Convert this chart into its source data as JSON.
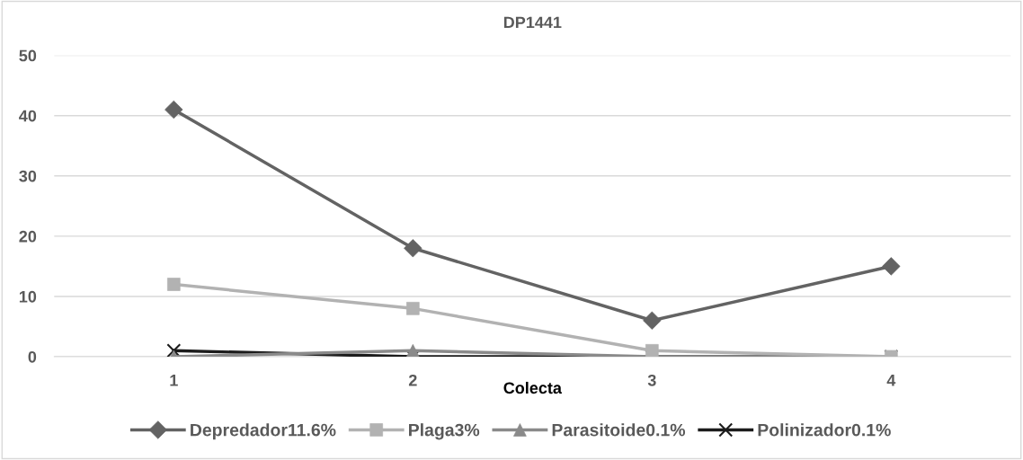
{
  "chart_data": {
    "type": "line",
    "title": "DP1441",
    "xlabel": "Colecta",
    "categories": [
      "1",
      "2",
      "3",
      "4"
    ],
    "series": [
      {
        "name": "Depredador11.6%",
        "color": "#636363",
        "marker": "diamond",
        "values": [
          41,
          18,
          6,
          15
        ]
      },
      {
        "name": "Plaga3%",
        "color": "#b2b2b2",
        "marker": "square",
        "values": [
          12,
          8,
          1,
          0
        ]
      },
      {
        "name": "Parasitoide0.1%",
        "color": "#8a8a8a",
        "marker": "triangle",
        "values": [
          0,
          1,
          0,
          0
        ]
      },
      {
        "name": "Polinizador0.1%",
        "color": "#1c1c1c",
        "marker": "cross",
        "values": [
          1,
          0,
          0,
          0
        ]
      }
    ],
    "ylim": [
      0,
      50
    ],
    "yticks": [
      0,
      10,
      20,
      30,
      40,
      50
    ],
    "grid": "y",
    "legend": "bottom",
    "line_style": "solid"
  }
}
